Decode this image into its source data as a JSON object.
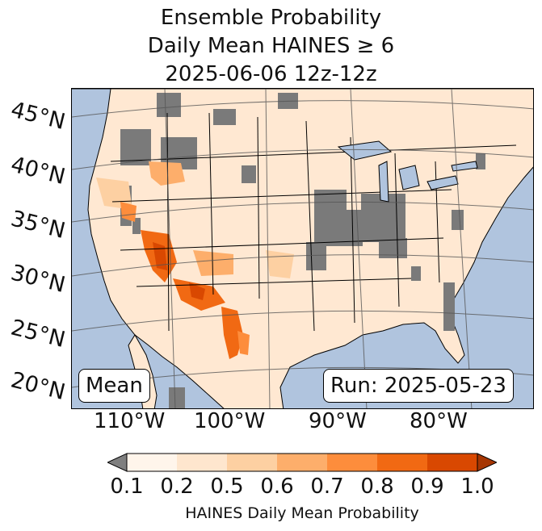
{
  "title": {
    "line1": "Ensemble Probability",
    "line2": "Daily Mean HAINES ≥ 6",
    "line3": "2025-06-06 12z-12z"
  },
  "map": {
    "lat_labels": [
      "45°N",
      "40°N",
      "35°N",
      "30°N",
      "25°N",
      "20°N"
    ],
    "lon_labels": [
      "110°W",
      "100°W",
      "90°W",
      "80°W"
    ],
    "mean_label": "Mean",
    "run_label": "Run: 2025-05-23",
    "colors": {
      "ocean": "#b0c4de",
      "land_low": "#ffe8d2",
      "missing_gray": "#7a7a7a",
      "state_lines": "#000000"
    }
  },
  "colorbar": {
    "ticks": [
      "0.1",
      "0.2",
      "0.5",
      "0.6",
      "0.7",
      "0.8",
      "0.9",
      "1.0"
    ],
    "colors": [
      "#fff5eb",
      "#fee6ce",
      "#fdd0a2",
      "#fdae6b",
      "#fd8d3c",
      "#f16913",
      "#d94801",
      "#a63603"
    ],
    "under_color": "#7f7f7f",
    "label": "HAINES Daily Mean Probability"
  }
}
